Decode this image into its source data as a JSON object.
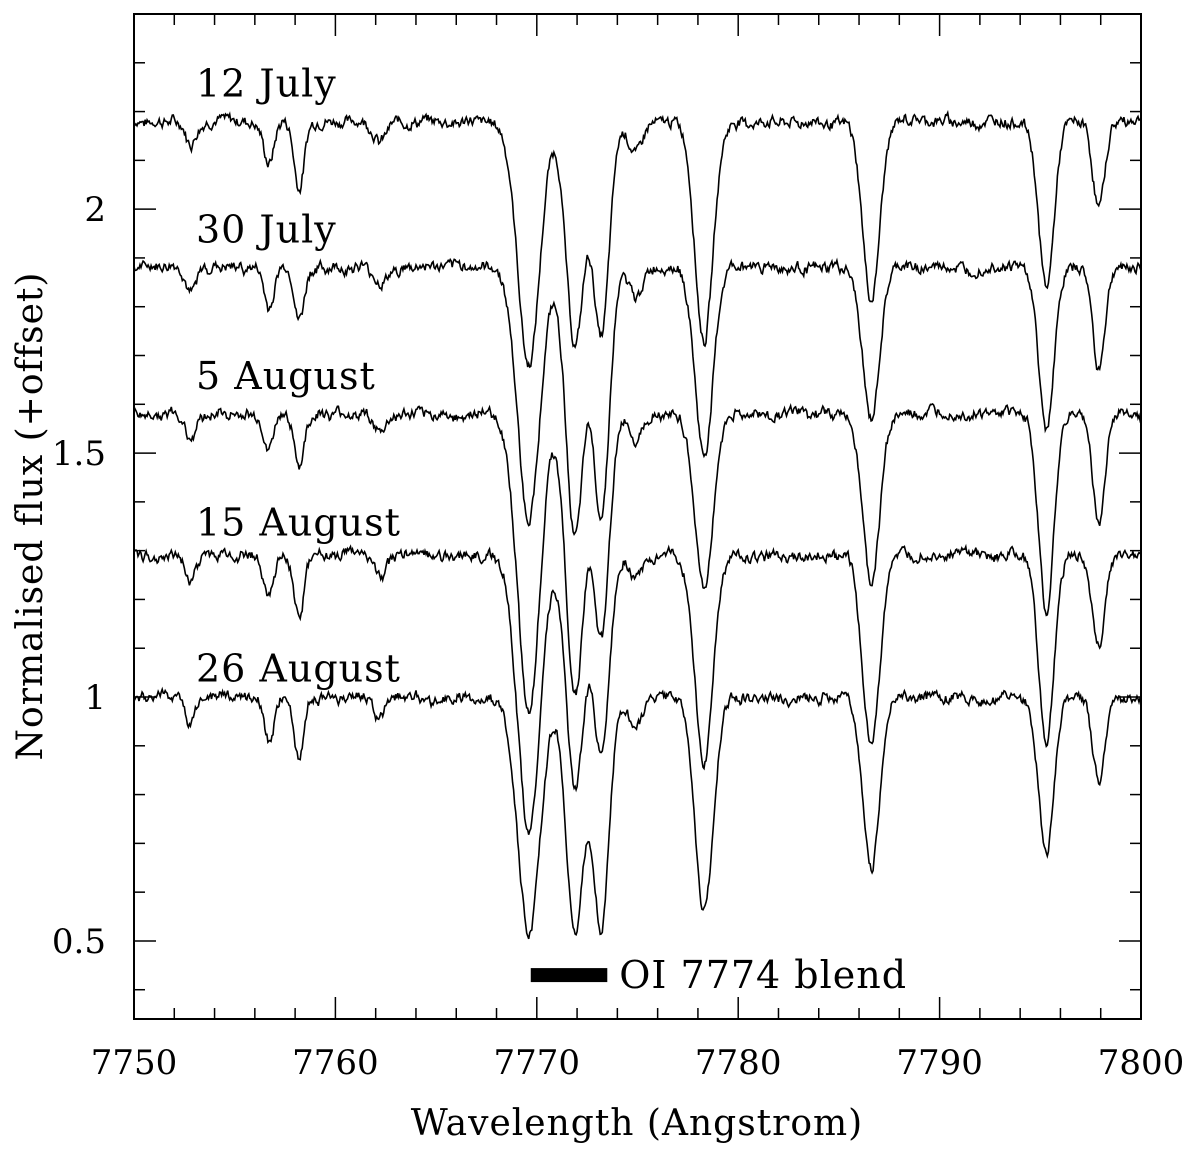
{
  "chart_data": {
    "type": "line",
    "title": "",
    "xlabel": "Wavelength (Angstrom)",
    "ylabel": "Normalised flux (+offset)",
    "xlim": [
      7750,
      7800
    ],
    "ylim": [
      0.34,
      2.4
    ],
    "x_ticks": [
      "7750",
      "7760",
      "7770",
      "7780",
      "7790",
      "7800"
    ],
    "y_ticks": [
      "0.5",
      "1",
      "1.5",
      "2"
    ],
    "y_tick_values": [
      0.5,
      1,
      1.5,
      2
    ],
    "grid": false,
    "legend": "none",
    "absorption_lines": [
      {
        "x": 7752.8,
        "depth": 0.05,
        "width": 0.25
      },
      {
        "x": 7756.7,
        "depth": 0.08,
        "width": 0.25
      },
      {
        "x": 7758.2,
        "depth": 0.12,
        "width": 0.25
      },
      {
        "x": 7762.2,
        "depth": 0.04,
        "width": 0.3
      },
      {
        "x": 7769.6,
        "depth": 0.55,
        "width": 0.55
      },
      {
        "x": 7771.9,
        "depth": 0.52,
        "width": 0.45
      },
      {
        "x": 7773.2,
        "depth": 0.45,
        "width": 0.4
      },
      {
        "x": 7774.9,
        "depth": 0.06,
        "width": 0.3
      },
      {
        "x": 7778.3,
        "depth": 0.4,
        "width": 0.45
      },
      {
        "x": 7786.6,
        "depth": 0.35,
        "width": 0.42
      },
      {
        "x": 7795.3,
        "depth": 0.36,
        "width": 0.38
      },
      {
        "x": 7797.9,
        "depth": 0.2,
        "width": 0.3
      }
    ],
    "series": [
      {
        "name": "12 July",
        "offset": 1.18,
        "label_y": 2.26
      },
      {
        "name": "30 July",
        "offset": 0.88,
        "label_y": 1.96
      },
      {
        "name": "5 August",
        "offset": 0.58,
        "label_y": 1.66
      },
      {
        "name": "15 August",
        "offset": 0.29,
        "label_y": 1.36
      },
      {
        "name": "26 August",
        "offset": 0.0,
        "label_y": 1.06
      }
    ],
    "annotations": [
      {
        "text": "OI 7774 blend",
        "x_start": 7769.7,
        "x_end": 7773.5,
        "y": 0.43
      }
    ]
  }
}
